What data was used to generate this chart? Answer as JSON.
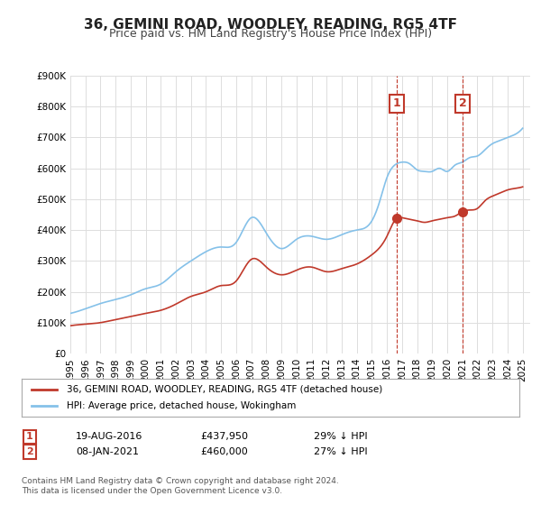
{
  "title": "36, GEMINI ROAD, WOODLEY, READING, RG5 4TF",
  "subtitle": "Price paid vs. HM Land Registry's House Price Index (HPI)",
  "ylabel": "",
  "ylim": [
    0,
    900000
  ],
  "yticks": [
    0,
    100000,
    200000,
    300000,
    400000,
    500000,
    600000,
    700000,
    800000,
    900000
  ],
  "ytick_labels": [
    "£0",
    "£100K",
    "£200K",
    "£300K",
    "£400K",
    "£500K",
    "£600K",
    "£700K",
    "£800K",
    "£900K"
  ],
  "xlim_start": 1995.0,
  "xlim_end": 2025.5,
  "xticks": [
    1995,
    1996,
    1997,
    1998,
    1999,
    2000,
    2001,
    2002,
    2003,
    2004,
    2005,
    2006,
    2007,
    2008,
    2009,
    2010,
    2011,
    2012,
    2013,
    2014,
    2015,
    2016,
    2017,
    2018,
    2019,
    2020,
    2021,
    2022,
    2023,
    2024,
    2025
  ],
  "red_color": "#c0392b",
  "blue_color": "#85c1e9",
  "marker1_x": 2016.63,
  "marker1_y": 437950,
  "marker2_x": 2021.03,
  "marker2_y": 460000,
  "vline1_x": 2016.63,
  "vline2_x": 2021.03,
  "legend_label_red": "36, GEMINI ROAD, WOODLEY, READING, RG5 4TF (detached house)",
  "legend_label_blue": "HPI: Average price, detached house, Wokingham",
  "annotation1_num": "1",
  "annotation1_date": "19-AUG-2016",
  "annotation1_price": "£437,950",
  "annotation1_hpi": "29% ↓ HPI",
  "annotation2_num": "2",
  "annotation2_date": "08-JAN-2021",
  "annotation2_price": "£460,000",
  "annotation2_hpi": "27% ↓ HPI",
  "footnote": "Contains HM Land Registry data © Crown copyright and database right 2024.\nThis data is licensed under the Open Government Licence v3.0.",
  "background_color": "#ffffff",
  "grid_color": "#dddddd",
  "title_fontsize": 11,
  "subtitle_fontsize": 9,
  "tick_fontsize": 7.5
}
